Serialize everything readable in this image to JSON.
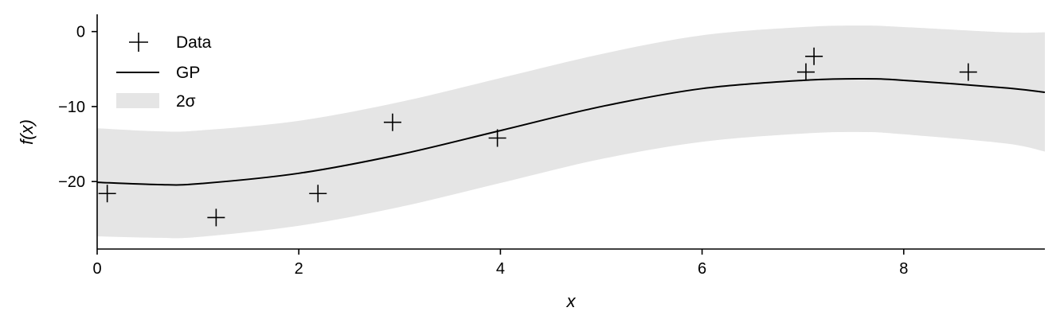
{
  "chart_data": {
    "type": "line",
    "xlabel": "x",
    "ylabel": "f(x)",
    "xlim": [
      0,
      9.4
    ],
    "ylim": [
      -29,
      2.3
    ],
    "xticks": [
      0,
      2,
      4,
      6,
      8
    ],
    "xtick_labels": [
      "0",
      "2",
      "4",
      "6",
      "8"
    ],
    "yticks": [
      0,
      -10,
      -20
    ],
    "ytick_labels": [
      "0",
      "−10",
      "−20"
    ],
    "grid": false,
    "legend_position": "top-left",
    "series": [
      {
        "name": "Data",
        "kind": "scatter",
        "marker": "+",
        "color": "#000000",
        "x": [
          0.1,
          1.18,
          2.19,
          2.93,
          3.97,
          7.03,
          7.11,
          8.64
        ],
        "y": [
          -21.6,
          -24.8,
          -21.6,
          -12.1,
          -14.2,
          -5.4,
          -3.3,
          -5.4
        ]
      },
      {
        "name": "GP",
        "kind": "line",
        "color": "#000000",
        "x": [
          0,
          0.6,
          1,
          2,
          3,
          4,
          5,
          6,
          7,
          7.6,
          8,
          9,
          9.4
        ],
        "y": [
          -20.1,
          -20.4,
          -20.3,
          -18.9,
          -16.4,
          -13.2,
          -10.0,
          -7.6,
          -6.5,
          -6.3,
          -6.5,
          -7.5,
          -8.1
        ]
      },
      {
        "name": "2σ",
        "kind": "band",
        "color": "#e5e5e5",
        "x": [
          0,
          0.6,
          1,
          2,
          3,
          4,
          5,
          6,
          7,
          7.6,
          8,
          9,
          9.4
        ],
        "lower": [
          -27.3,
          -27.5,
          -27.4,
          -25.9,
          -23.4,
          -20.2,
          -17.0,
          -14.7,
          -13.6,
          -13.4,
          -13.7,
          -14.9,
          -16.0
        ],
        "upper": [
          -12.9,
          -13.3,
          -13.2,
          -11.9,
          -9.4,
          -6.2,
          -3.0,
          -0.5,
          0.6,
          0.8,
          0.6,
          -0.1,
          -0.1
        ]
      }
    ]
  }
}
